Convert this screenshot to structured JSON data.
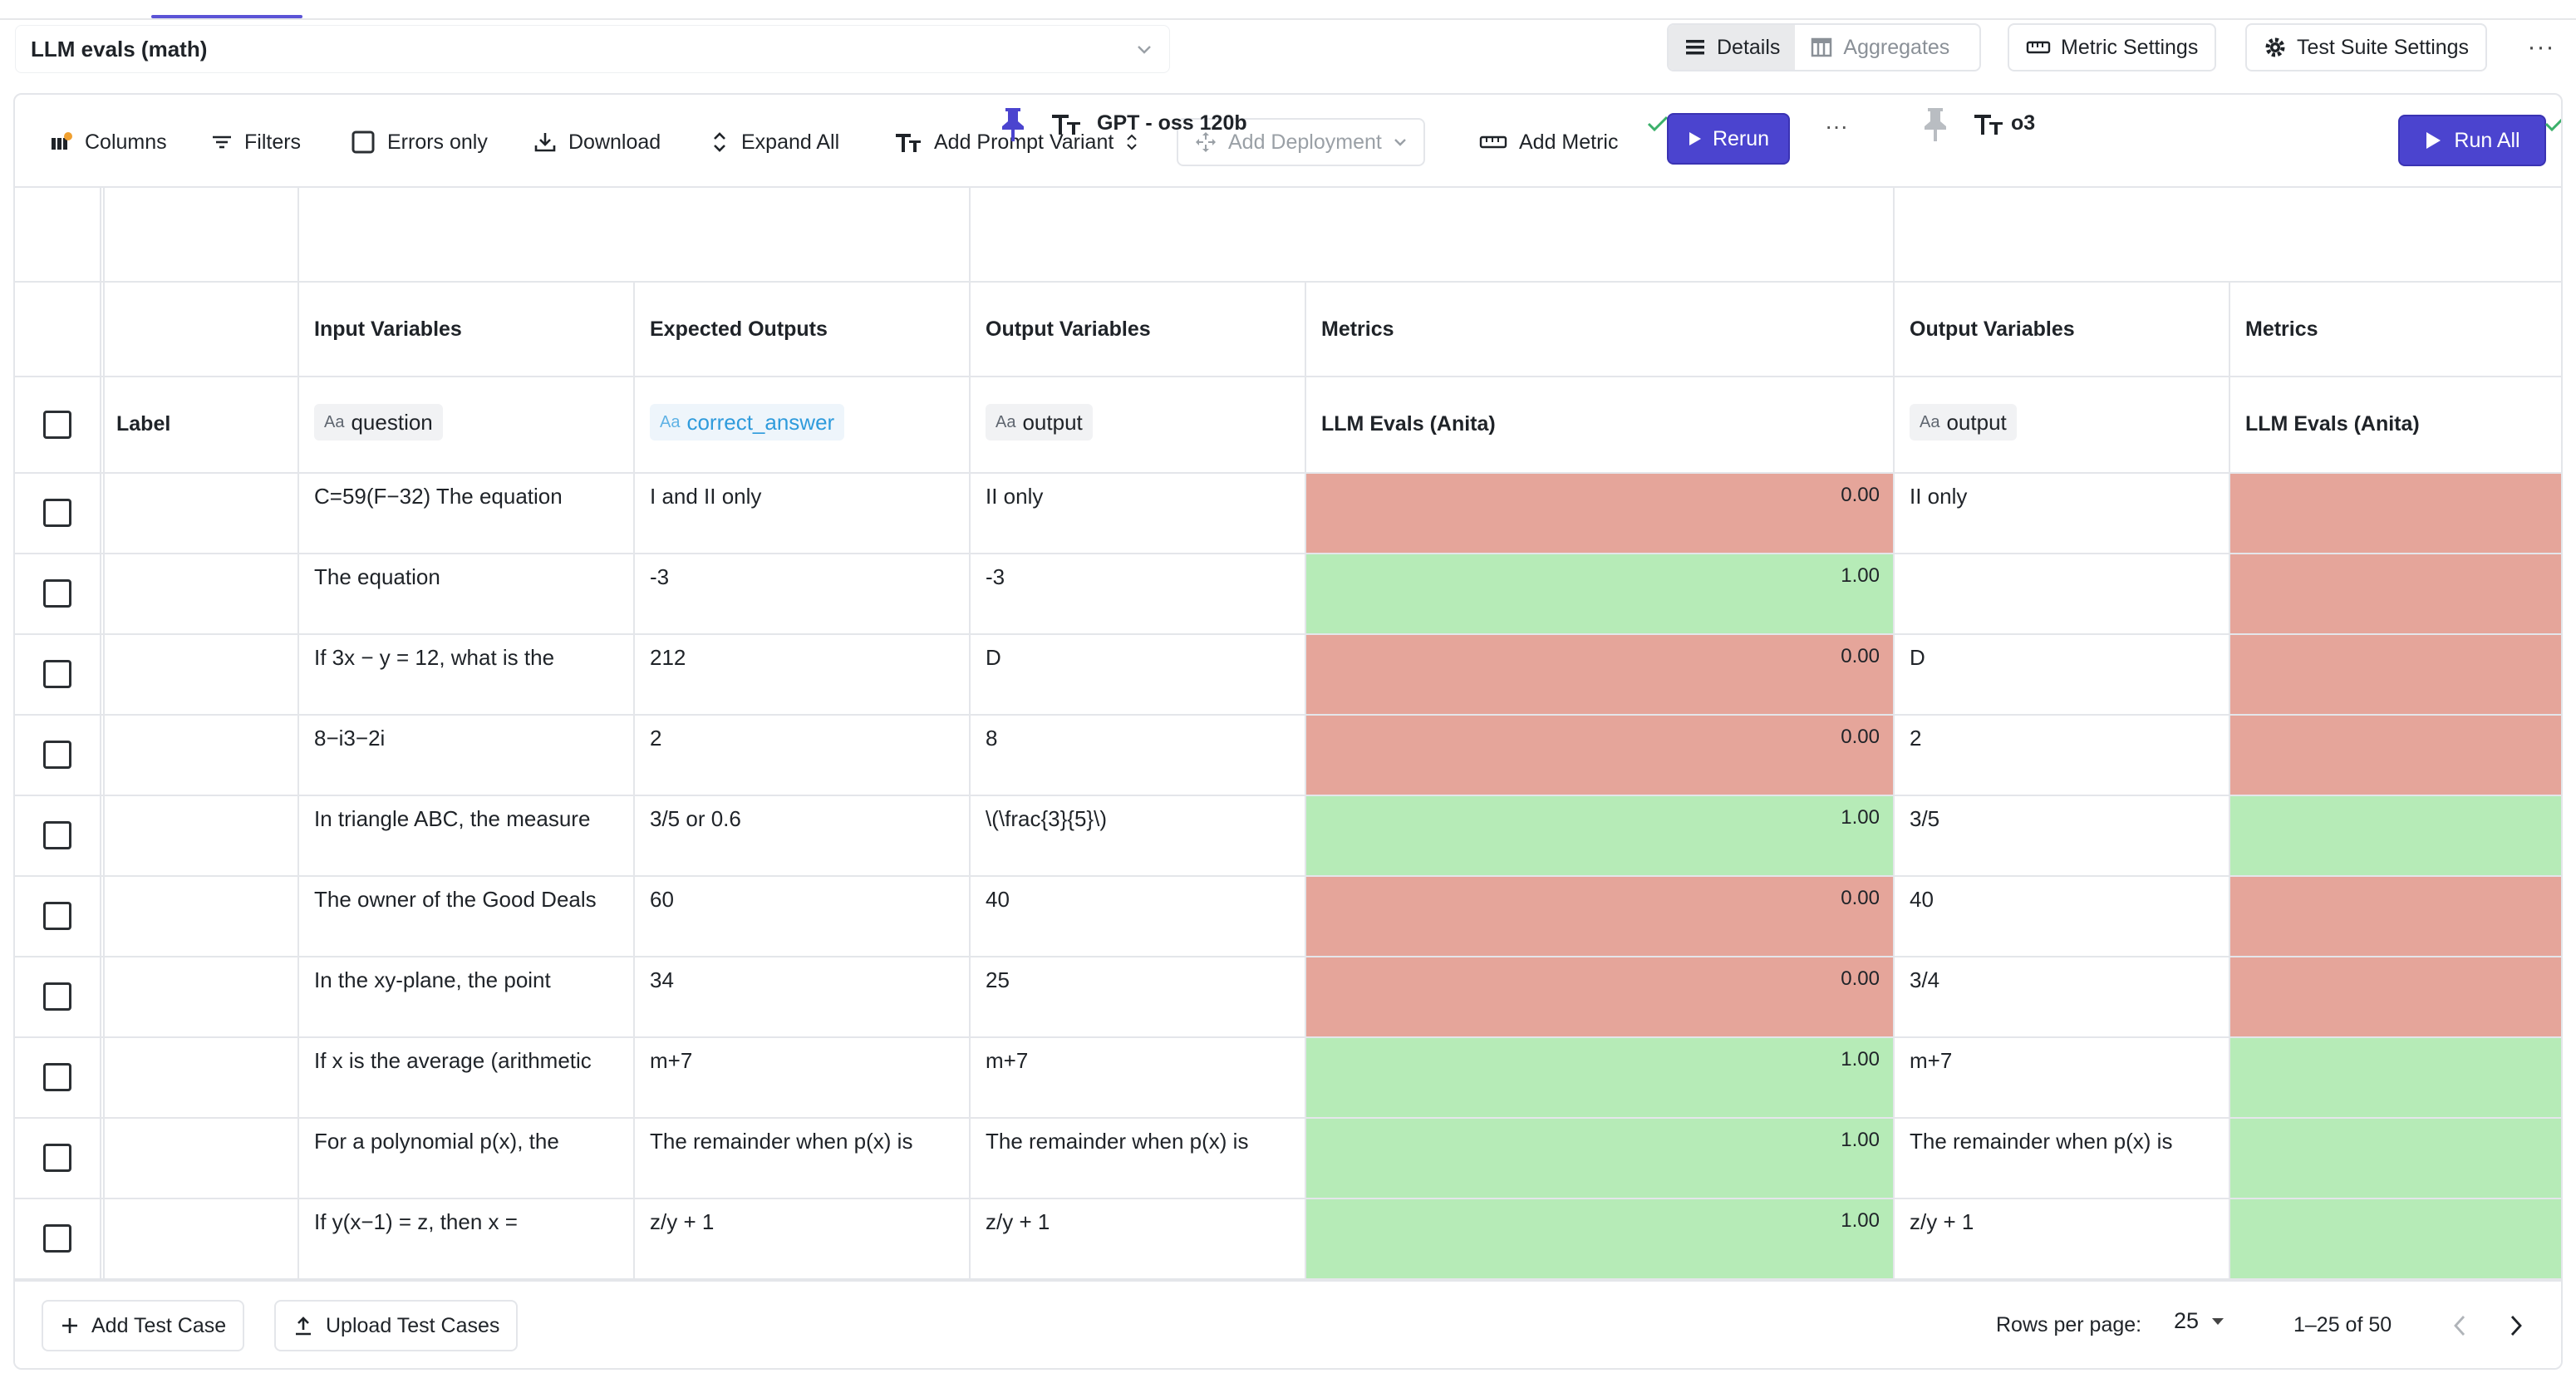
{
  "header": {
    "title": "LLM evals (math)",
    "view_details": "Details",
    "view_aggregates": "Aggregates",
    "metric_settings": "Metric Settings",
    "suite_settings": "Test Suite Settings",
    "more": "···"
  },
  "toolbar": {
    "columns": "Columns",
    "filters": "Filters",
    "errors_only": "Errors only",
    "download": "Download",
    "expand_all": "Expand All",
    "add_prompt_variant": "Add Prompt Variant",
    "add_deployment": "Add Deployment",
    "add_metric": "Add Metric",
    "run_all": "Run All"
  },
  "variants": [
    {
      "name": "GPT - oss 120b",
      "rerun": "Rerun",
      "more": "···"
    },
    {
      "name": "o3"
    }
  ],
  "columns": {
    "input": "Input Variables",
    "expected": "Expected Outputs",
    "output": "Output Variables",
    "metrics": "Metrics",
    "label": "Label",
    "type_prefix": "Aa",
    "question_var": "question",
    "answer_var": "correct_answer",
    "output_var": "output",
    "metric_name": "LLM Evals (Anita)"
  },
  "colors": {
    "fail": "#e5a59a",
    "pass": "#b6ebb7",
    "accent": "#4b44cf"
  },
  "rows": [
    {
      "question": "C=59(F−32) The equation",
      "expected": "I and II only",
      "out1": "II only",
      "score1": "0.00",
      "pass1": false,
      "out2": "II only",
      "pass2": false
    },
    {
      "question": "The equation",
      "expected": "-3",
      "out1": "-3",
      "score1": "1.00",
      "pass1": true,
      "out2": "",
      "pass2": false
    },
    {
      "question": "If 3x − y = 12, what is the",
      "expected": "212",
      "out1": "D",
      "score1": "0.00",
      "pass1": false,
      "out2": "D",
      "pass2": false
    },
    {
      "question": "8−i3−2i",
      "expected": "2",
      "out1": "8",
      "score1": "0.00",
      "pass1": false,
      "out2": "2",
      "pass2": false
    },
    {
      "question": "In triangle ABC, the measure",
      "expected": "3/5 or 0.6",
      "out1": "\\(\\frac{3}{5}\\)",
      "score1": "1.00",
      "pass1": true,
      "out2": "3/5",
      "pass2": true
    },
    {
      "question": "The owner of the Good Deals",
      "expected": "60",
      "out1": "40",
      "score1": "0.00",
      "pass1": false,
      "out2": "40",
      "pass2": false
    },
    {
      "question": "In the xy-plane, the point",
      "expected": "34",
      "out1": "25",
      "score1": "0.00",
      "pass1": false,
      "out2": "3/4",
      "pass2": false
    },
    {
      "question": "If x is the average (arithmetic",
      "expected": "m+7",
      "out1": "m+7",
      "score1": "1.00",
      "pass1": true,
      "out2": "m+7",
      "pass2": true
    },
    {
      "question": "For a polynomial p(x), the",
      "expected": "The remainder when p(x) is",
      "out1": "The remainder when p(x) is",
      "score1": "1.00",
      "pass1": true,
      "out2": "The remainder when p(x) is",
      "pass2": true
    },
    {
      "question": "If y(x−1) = z, then x =",
      "expected": "z/y + 1",
      "out1": "z/y + 1",
      "score1": "1.00",
      "pass1": true,
      "out2": "z/y + 1",
      "pass2": true
    }
  ],
  "footer": {
    "add_test_case": "Add Test Case",
    "upload_test_cases": "Upload Test Cases",
    "rows_per_page_label": "Rows per page:",
    "rows_per_page_value": "25",
    "range": "1–25 of 50"
  }
}
